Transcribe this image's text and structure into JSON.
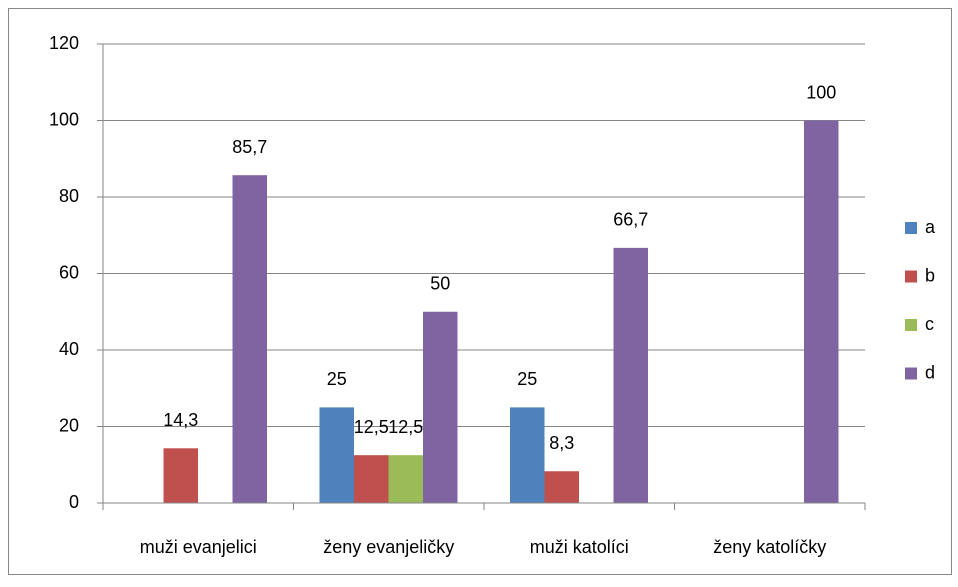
{
  "chart_data": {
    "type": "bar",
    "categories": [
      "muži evanjelici",
      "ženy evanjeličky",
      "muži katolíci",
      "ženy katolíčky"
    ],
    "series": [
      {
        "name": "a",
        "color": "#4f81bd",
        "values": [
          null,
          25,
          25,
          null
        ],
        "value_labels": [
          null,
          "25",
          "25",
          null
        ]
      },
      {
        "name": "b",
        "color": "#c0504d",
        "values": [
          14.3,
          12.5,
          8.3,
          null
        ],
        "value_labels": [
          "14,3",
          "12,5",
          "8,3",
          null
        ]
      },
      {
        "name": "c",
        "color": "#9bbb59",
        "values": [
          null,
          12.5,
          null,
          null
        ],
        "value_labels": [
          null,
          "12,5",
          null,
          null
        ]
      },
      {
        "name": "d",
        "color": "#8064a2",
        "values": [
          85.7,
          50,
          66.7,
          100
        ],
        "value_labels": [
          "85,7",
          "50",
          "66,7",
          "100"
        ]
      }
    ],
    "ylim": [
      0,
      120
    ],
    "yticks": [
      0,
      20,
      40,
      60,
      80,
      100,
      120
    ],
    "grid": true,
    "legend": "right"
  }
}
